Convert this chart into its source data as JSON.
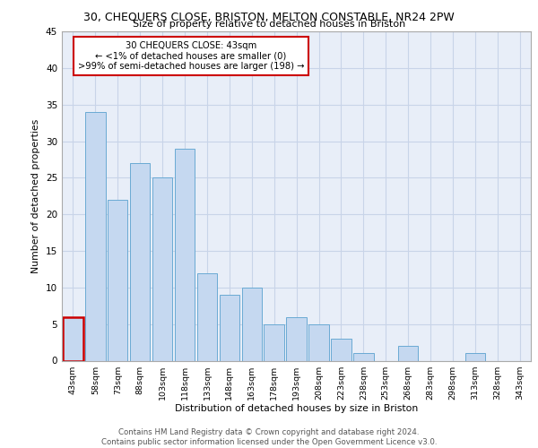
{
  "title_line1": "30, CHEQUERS CLOSE, BRISTON, MELTON CONSTABLE, NR24 2PW",
  "title_line2": "Size of property relative to detached houses in Briston",
  "xlabel": "Distribution of detached houses by size in Briston",
  "ylabel": "Number of detached properties",
  "categories": [
    "43sqm",
    "58sqm",
    "73sqm",
    "88sqm",
    "103sqm",
    "118sqm",
    "133sqm",
    "148sqm",
    "163sqm",
    "178sqm",
    "193sqm",
    "208sqm",
    "223sqm",
    "238sqm",
    "253sqm",
    "268sqm",
    "283sqm",
    "298sqm",
    "313sqm",
    "328sqm",
    "343sqm"
  ],
  "values": [
    6,
    34,
    22,
    27,
    25,
    29,
    12,
    9,
    10,
    5,
    6,
    5,
    3,
    1,
    0,
    2,
    0,
    0,
    1,
    0,
    0
  ],
  "bar_color": "#c5d8f0",
  "bar_edge_color": "#6aaad4",
  "highlight_index": 0,
  "highlight_color": "#cc0000",
  "annotation_line1": "30 CHEQUERS CLOSE: 43sqm",
  "annotation_line2": "← <1% of detached houses are smaller (0)",
  "annotation_line3": ">99% of semi-detached houses are larger (198) →",
  "ylim": [
    0,
    45
  ],
  "yticks": [
    0,
    5,
    10,
    15,
    20,
    25,
    30,
    35,
    40,
    45
  ],
  "grid_color": "#c8d4e8",
  "background_color": "#e8eef8",
  "footer_line1": "Contains HM Land Registry data © Crown copyright and database right 2024.",
  "footer_line2": "Contains public sector information licensed under the Open Government Licence v3.0."
}
